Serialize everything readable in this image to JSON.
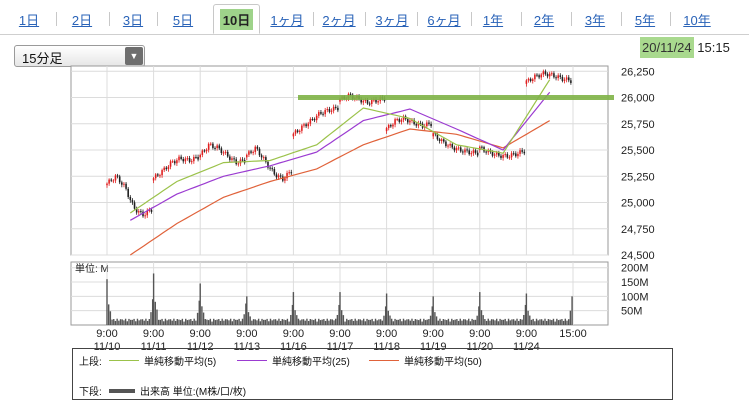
{
  "tabs": [
    {
      "label": "1日",
      "active": false
    },
    {
      "label": "2日",
      "active": false
    },
    {
      "label": "3日",
      "active": false
    },
    {
      "label": "5日",
      "active": false
    },
    {
      "label": "10日",
      "active": true
    },
    {
      "label": "1ヶ月",
      "active": false
    },
    {
      "label": "2ヶ月",
      "active": false
    },
    {
      "label": "3ヶ月",
      "active": false
    },
    {
      "label": "6ヶ月",
      "active": false
    },
    {
      "label": "1年",
      "active": false
    },
    {
      "label": "2年",
      "active": false
    },
    {
      "label": "3年",
      "active": false
    },
    {
      "label": "5年",
      "active": false
    },
    {
      "label": "10年",
      "active": false
    }
  ],
  "interval_select": {
    "value": "15分足"
  },
  "datetime": {
    "date": "20/11/24",
    "time": "15:15"
  },
  "legend": {
    "upper_label": "上段:",
    "lower_label": "下段:",
    "ma5": "単純移動平均(5)",
    "ma25": "単純移動平均(25)",
    "ma50": "単純移動平均(50)",
    "volume": "出来高 単位:(M株/口/枚)"
  },
  "colors": {
    "up_candle": "#e02020",
    "down_candle": "#202020",
    "ma5": "#9bc24a",
    "ma25": "#9b3bd1",
    "ma50": "#e0623a",
    "annotation": "#7fb347",
    "volume": "#555555"
  },
  "chart_data": [
    {
      "type": "candlestick",
      "y_ticks": [
        "26,250",
        "26,000",
        "25,750",
        "25,500",
        "25,250",
        "25,000",
        "24,750",
        "24,500"
      ],
      "ylim": [
        24500,
        26300
      ],
      "days": [
        "11/10",
        "11/11",
        "11/12",
        "11/13",
        "11/16",
        "11/17",
        "11/18",
        "11/19",
        "11/20",
        "11/24"
      ],
      "session_ticks": [
        {
          "time": "9:00",
          "date": "11/10"
        },
        {
          "time": "9:00",
          "date": "11/11"
        },
        {
          "time": "9:00",
          "date": "11/12"
        },
        {
          "time": "9:00",
          "date": "11/13"
        },
        {
          "time": "9:00",
          "date": "11/16"
        },
        {
          "time": "9:00",
          "date": "11/17"
        },
        {
          "time": "9:00",
          "date": "11/18"
        },
        {
          "time": "9:00",
          "date": "11/19"
        },
        {
          "time": "9:00",
          "date": "11/20"
        },
        {
          "time": "9:00",
          "date": "11/24"
        },
        {
          "time": "15:00",
          "date": ""
        }
      ],
      "session_price_path": [
        [
          25180,
          25250,
          25150,
          24950,
          24880,
          24930
        ],
        [
          25230,
          25300,
          25380,
          25420,
          25400,
          25430
        ],
        [
          25450,
          25550,
          25520,
          25450,
          25380,
          25400
        ],
        [
          25450,
          25520,
          25400,
          25280,
          25220,
          25300
        ],
        [
          25650,
          25720,
          25780,
          25850,
          25880,
          25900
        ],
        [
          25980,
          26020,
          25990,
          25950,
          25970,
          25990
        ],
        [
          25700,
          25780,
          25800,
          25760,
          25730,
          25750
        ],
        [
          25650,
          25580,
          25530,
          25500,
          25480,
          25470
        ],
        [
          25520,
          25480,
          25450,
          25440,
          25460,
          25490
        ],
        [
          26150,
          26200,
          26230,
          26210,
          26180,
          26160
        ]
      ],
      "moving_averages": {
        "ma5": [
          24900,
          25200,
          25380,
          25400,
          25550,
          25900,
          25800,
          25550,
          25470,
          26170
        ],
        "ma25": [
          24830,
          25080,
          25250,
          25350,
          25480,
          25780,
          25890,
          25700,
          25500,
          26050
        ],
        "ma50": [
          24500,
          24800,
          25050,
          25200,
          25320,
          25550,
          25700,
          25650,
          25520,
          25780
        ]
      },
      "annotation_line": {
        "value": 26000,
        "note": "horizontal highlight line"
      }
    },
    {
      "type": "bar",
      "title": "単位: M",
      "y_ticks": [
        "200M",
        "150M",
        "100M",
        "50M"
      ],
      "ylim": [
        0,
        220
      ],
      "open_volumes": [
        160,
        180,
        145,
        100,
        115,
        115,
        110,
        100,
        115,
        110
      ],
      "close_volumes": [
        90,
        85,
        75,
        70,
        70,
        65,
        65,
        65,
        70,
        100
      ]
    }
  ]
}
